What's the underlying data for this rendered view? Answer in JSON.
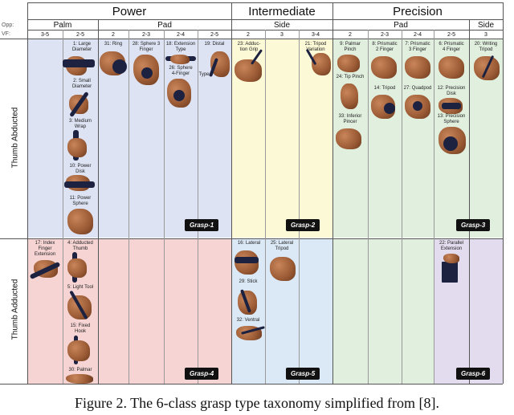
{
  "headers": {
    "opp_label": "Opp:",
    "vf_label": "VF:",
    "power": "Power",
    "intermediate": "Intermediate",
    "precision": "Precision",
    "palm": "Palm",
    "pad_power": "Pad",
    "side_intermediate": "Side",
    "pad_precision": "Pad",
    "side_precision": "Side",
    "vf": [
      "3-5",
      "2-5",
      "2",
      "2-3",
      "2-4",
      "2-5",
      "2",
      "3",
      "3-4",
      "2",
      "2-3",
      "2-4",
      "2-5",
      "3"
    ]
  },
  "rows": {
    "abducted": "Thumb Abducted",
    "adducted": "Thumb Adducted"
  },
  "badges": {
    "g1": "Grasp-1",
    "g2": "Grasp-2",
    "g3": "Grasp-3",
    "g4": "Grasp-4",
    "g5": "Grasp-5",
    "g6": "Grasp-6"
  },
  "grasps": {
    "large_diameter": "1: Large\nDiameter",
    "small_diameter": "2: Small\nDiameter",
    "medium_wrap": "3: Medium\nWrap",
    "power_disk": "10: Power\nDisk",
    "power_sphere": "11: Power\nSphere",
    "ring": "31: Ring",
    "sphere3": "28: Sphere 3\nFinger",
    "extension_type": "18: Extension\nType",
    "sphere4": "26: Sphere\n4-Finger",
    "distal": "19: Distal",
    "distal_type": "Type",
    "adduction_grip": "23: Adduc-\ntion Grip",
    "tripod_variation": "21: Tripod\nVariation",
    "palmar_pinch": "9: Palmar\nPinch",
    "tip_pinch": "24: Tip Pinch",
    "inferior_pincer": "33: Inferior\nPincer",
    "prismatic2": "8: Prismatic\n2 Finger",
    "tripod": "14: Tripod",
    "prismatic3": "7: Prismatic\n3 Finger",
    "quadpod": "27: Quadpod",
    "prismatic4": "6: Prismatic\n4 Finger",
    "precision_disk": "12: Precision\nDisk",
    "precision_sphere": "13: Precision\nSphere",
    "writing_tripod": "20: Writing\nTripod",
    "index_finger_ext": "17: Index\nFinger\nExtension",
    "adducted_thumb": "4: Adducted\nThumb",
    "light_tool": "5: Light Tool",
    "fixed_hook": "15: Fixed\nHook",
    "palmar": "30: Palmar",
    "lateral": "16: Lateral",
    "lateral_tripod": "25: Lateral\nTripod",
    "stick": "29: Stick",
    "ventral": "32: Ventral",
    "parallel_extension": "22: Parallel\nExtension"
  },
  "colors": {
    "blue": "#dde3f3",
    "yellow": "#fbf9d6",
    "green": "#e1efdf",
    "red": "#f6d4d4",
    "lightblue": "#dbe9f7",
    "purple": "#e3dcef"
  },
  "caption": "Figure 2. The 6-class grasp type taxonomy simplified from [8]."
}
